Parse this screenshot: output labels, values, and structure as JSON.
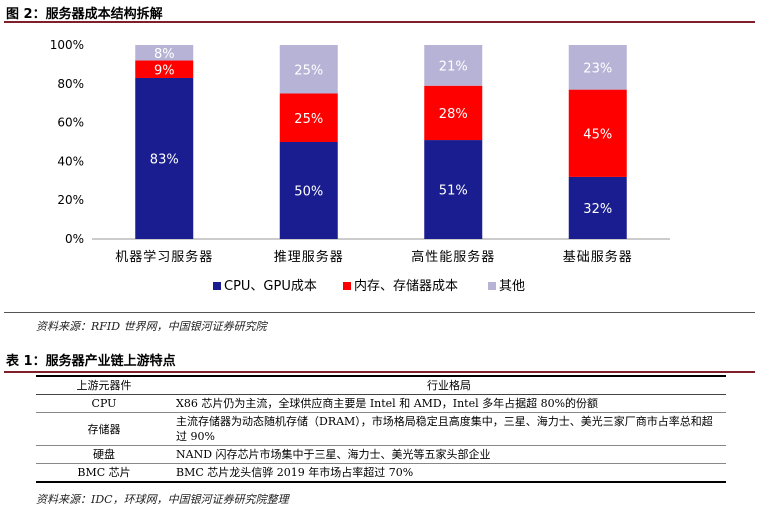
{
  "figure": {
    "title": "图 2：服务器成本结构拆解",
    "source": "资料来源：RFID 世界网，中国银河证券研究院"
  },
  "colors": {
    "cpu": "#1a1d8f",
    "memory": "#ff0000",
    "other": "#b7b3d6"
  },
  "chart_data": {
    "type": "bar",
    "stacked": true,
    "percent": true,
    "categories": [
      "机器学习服务器",
      "推理服务器",
      "高性能服务器",
      "基础服务器"
    ],
    "series": [
      {
        "name": "CPU、GPU成本",
        "values": [
          83,
          50,
          51,
          32
        ],
        "labels": [
          "83%",
          "50%",
          "51%",
          "32%"
        ]
      },
      {
        "name": "内存、存储器成本",
        "values": [
          9,
          25,
          28,
          45
        ],
        "labels": [
          "9%",
          "25%",
          "28%",
          "45%"
        ]
      },
      {
        "name": "其他",
        "values": [
          8,
          25,
          21,
          23
        ],
        "labels": [
          "8%",
          "25%",
          "21%",
          "23%"
        ]
      }
    ],
    "yticks": [
      "0%",
      "20%",
      "40%",
      "60%",
      "80%",
      "100%"
    ],
    "ylim": [
      0,
      100
    ],
    "grid": false,
    "legend_position": "bottom"
  },
  "table": {
    "title": "表 1：服务器产业链上游特点",
    "headers": [
      "上游元器件",
      "行业格局"
    ],
    "rows": [
      {
        "component": "CPU",
        "pattern": "X86 芯片仍为主流，全球供应商主要是 Intel 和 AMD，Intel 多年占据超 80%的份额"
      },
      {
        "component": "存储器",
        "pattern": "主流存储器为动态随机存储（DRAM），市场格局稳定且高度集中，三星、海力士、美光三家厂商市占率总和超过 90%"
      },
      {
        "component": "硬盘",
        "pattern": "NAND 闪存芯片市场集中于三星、海力士、美光等五家头部企业"
      },
      {
        "component": "BMC 芯片",
        "pattern": "BMC 芯片龙头信骅 2019 年市场占率超过 70%"
      }
    ],
    "source": "资料来源：IDC，环球网，中国银河证券研究院整理"
  }
}
